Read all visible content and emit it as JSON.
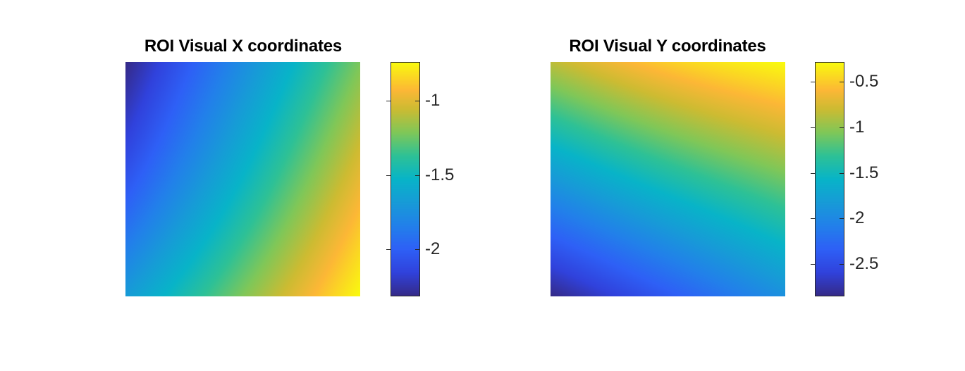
{
  "chart_data": [
    {
      "type": "heatmap",
      "title": "ROI Visual X coordinates",
      "colormap": "parula",
      "clim": [
        -2.31,
        -0.74
      ],
      "colorbar_ticks": [
        -2,
        -1.5,
        -1
      ],
      "colorbar_tick_labels": [
        "-2",
        "-1.5",
        "-1"
      ],
      "corner_values": {
        "top_left": -2.31,
        "top_right": -1.22,
        "bottom_left": -1.68,
        "bottom_right": -0.74
      },
      "grid": false,
      "axes_visible": false,
      "colorbar_placement": "right"
    },
    {
      "type": "heatmap",
      "title": "ROI Visual Y coordinates",
      "colormap": "parula",
      "clim": [
        -2.85,
        -0.28
      ],
      "colorbar_ticks": [
        -2.5,
        -2,
        -1.5,
        -1,
        -0.5
      ],
      "colorbar_tick_labels": [
        "-2.5",
        "-2",
        "-1.5",
        "-1",
        "-0.5"
      ],
      "corner_values": {
        "top_left": -0.85,
        "top_right": -0.28,
        "bottom_left": -2.85,
        "bottom_right": -1.92
      },
      "grid": false,
      "axes_visible": false,
      "colorbar_placement": "right"
    }
  ]
}
